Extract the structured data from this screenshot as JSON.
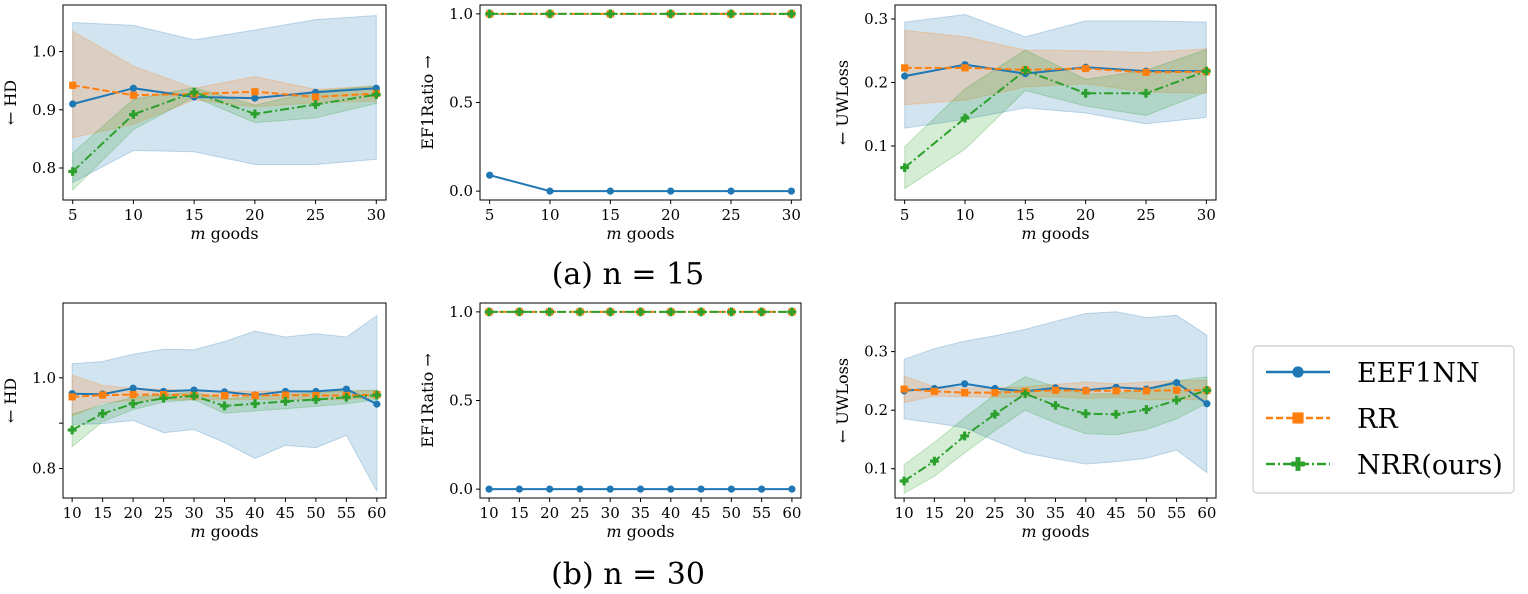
{
  "captions": [
    "(a) n = 15",
    "(b) n = 30"
  ],
  "legend": {
    "entries": [
      {
        "name": "EEF1NN",
        "color": "#1f77b4",
        "marker": "circle",
        "dash": "solid"
      },
      {
        "name": "RR",
        "color": "#ff7f0e",
        "marker": "square",
        "dash": "dashed"
      },
      {
        "name": "NRR(ours)",
        "color": "#2ca02c",
        "marker": "plus",
        "dash": "dashdot"
      }
    ]
  },
  "chart_data": [
    {
      "id": "a-hd",
      "type": "line",
      "row": 0,
      "col": 0,
      "xlabel": "m goods",
      "ylabel": "← HD",
      "x": [
        5,
        10,
        15,
        20,
        25,
        30
      ],
      "xlim": [
        4.2,
        30.8
      ],
      "ylim": [
        0.745,
        1.08
      ],
      "yticks": [
        0.8,
        0.9,
        1.0
      ],
      "ytick_labels": [
        "0.8",
        "0.9",
        "1.0"
      ],
      "series": [
        {
          "name": "EEF1NN",
          "values": [
            0.91,
            0.937,
            0.922,
            0.92,
            0.93,
            0.937
          ],
          "lower": [
            0.775,
            0.83,
            0.828,
            0.806,
            0.806,
            0.815
          ],
          "upper": [
            1.05,
            1.045,
            1.02,
            1.037,
            1.055,
            1.062
          ]
        },
        {
          "name": "RR",
          "values": [
            0.942,
            0.925,
            0.927,
            0.931,
            0.922,
            0.928
          ],
          "lower": [
            0.852,
            0.875,
            0.917,
            0.905,
            0.912,
            0.915
          ],
          "upper": [
            1.035,
            0.975,
            0.937,
            0.957,
            0.935,
            0.941
          ]
        },
        {
          "name": "NRR(ours)",
          "values": [
            0.794,
            0.892,
            0.93,
            0.893,
            0.909,
            0.926
          ],
          "lower": [
            0.762,
            0.866,
            0.922,
            0.878,
            0.886,
            0.911
          ],
          "upper": [
            0.826,
            0.918,
            0.938,
            0.908,
            0.932,
            0.941
          ]
        }
      ]
    },
    {
      "id": "a-ef1",
      "type": "line",
      "row": 0,
      "col": 1,
      "xlabel": "m goods",
      "ylabel": "EF1Ratio →",
      "x": [
        5,
        10,
        15,
        20,
        25,
        30
      ],
      "xlim": [
        4.2,
        30.8
      ],
      "ylim": [
        -0.05,
        1.05
      ],
      "yticks": [
        0.0,
        0.5,
        1.0
      ],
      "ytick_labels": [
        "0.0",
        "0.5",
        "1.0"
      ],
      "series": [
        {
          "name": "EEF1NN",
          "values": [
            0.09,
            0.0,
            0.0,
            0.0,
            0.0,
            0.0
          ]
        },
        {
          "name": "RR",
          "values": [
            1.0,
            1.0,
            1.0,
            1.0,
            1.0,
            1.0
          ]
        },
        {
          "name": "NRR(ours)",
          "values": [
            1.0,
            1.0,
            1.0,
            1.0,
            1.0,
            1.0
          ]
        }
      ]
    },
    {
      "id": "a-uw",
      "type": "line",
      "row": 0,
      "col": 2,
      "xlabel": "m goods",
      "ylabel": "← UWLoss",
      "x": [
        5,
        10,
        15,
        20,
        25,
        30
      ],
      "xlim": [
        4.2,
        30.8
      ],
      "ylim": [
        0.015,
        0.322
      ],
      "yticks": [
        0.1,
        0.2,
        0.3
      ],
      "ytick_labels": [
        "0.1",
        "0.2",
        "0.3"
      ],
      "series": [
        {
          "name": "EEF1NN",
          "values": [
            0.21,
            0.228,
            0.214,
            0.224,
            0.218,
            0.218
          ],
          "lower": [
            0.128,
            0.142,
            0.16,
            0.152,
            0.135,
            0.145
          ],
          "upper": [
            0.295,
            0.307,
            0.272,
            0.297,
            0.297,
            0.295
          ]
        },
        {
          "name": "RR",
          "values": [
            0.223,
            0.223,
            0.22,
            0.222,
            0.216,
            0.217
          ],
          "lower": [
            0.165,
            0.172,
            0.193,
            0.198,
            0.185,
            0.183
          ],
          "upper": [
            0.282,
            0.272,
            0.251,
            0.25,
            0.247,
            0.253
          ]
        },
        {
          "name": "NRR(ours)",
          "values": [
            0.066,
            0.144,
            0.219,
            0.183,
            0.183,
            0.218
          ],
          "lower": [
            0.033,
            0.095,
            0.187,
            0.163,
            0.148,
            0.185
          ],
          "upper": [
            0.099,
            0.19,
            0.251,
            0.205,
            0.219,
            0.252
          ]
        }
      ]
    },
    {
      "id": "b-hd",
      "type": "line",
      "row": 1,
      "col": 0,
      "xlabel": "m goods",
      "ylabel": "← HD",
      "x": [
        10,
        15,
        20,
        25,
        30,
        35,
        40,
        45,
        50,
        55,
        60
      ],
      "xlim": [
        8.5,
        61.5
      ],
      "ylim": [
        0.735,
        1.165
      ],
      "yticks": [
        0.8,
        0.9,
        1.0
      ],
      "ytick_labels": [
        "0.8",
        "",
        "1.0"
      ],
      "series": [
        {
          "name": "EEF1NN",
          "values": [
            0.965,
            0.964,
            0.977,
            0.97,
            0.973,
            0.969,
            0.962,
            0.97,
            0.97,
            0.975,
            0.942
          ],
          "lower": [
            0.897,
            0.899,
            0.906,
            0.879,
            0.886,
            0.857,
            0.822,
            0.851,
            0.846,
            0.873,
            0.75
          ],
          "upper": [
            1.031,
            1.036,
            1.052,
            1.063,
            1.062,
            1.08,
            1.103,
            1.09,
            1.097,
            1.09,
            1.137
          ]
        },
        {
          "name": "RR",
          "values": [
            0.958,
            0.962,
            0.963,
            0.963,
            0.961,
            0.961,
            0.961,
            0.962,
            0.961,
            0.961,
            0.963
          ],
          "lower": [
            0.915,
            0.945,
            0.95,
            0.952,
            0.951,
            0.952,
            0.952,
            0.953,
            0.952,
            0.952,
            0.956
          ],
          "upper": [
            1.006,
            0.983,
            0.977,
            0.975,
            0.972,
            0.971,
            0.97,
            0.971,
            0.97,
            0.971,
            0.972
          ]
        },
        {
          "name": "NRR(ours)",
          "values": [
            0.885,
            0.921,
            0.943,
            0.955,
            0.96,
            0.938,
            0.943,
            0.948,
            0.952,
            0.957,
            0.962
          ],
          "lower": [
            0.848,
            0.903,
            0.93,
            0.947,
            0.952,
            0.922,
            0.927,
            0.932,
            0.937,
            0.943,
            0.952
          ],
          "upper": [
            0.92,
            0.94,
            0.957,
            0.963,
            0.968,
            0.954,
            0.958,
            0.963,
            0.967,
            0.971,
            0.973
          ]
        }
      ]
    },
    {
      "id": "b-ef1",
      "type": "line",
      "row": 1,
      "col": 1,
      "xlabel": "m goods",
      "ylabel": "EF1Ratio →",
      "x": [
        10,
        15,
        20,
        25,
        30,
        35,
        40,
        45,
        50,
        55,
        60
      ],
      "xlim": [
        8.5,
        61.5
      ],
      "ylim": [
        -0.05,
        1.05
      ],
      "yticks": [
        0.0,
        0.5,
        1.0
      ],
      "ytick_labels": [
        "0.0",
        "0.5",
        "1.0"
      ],
      "series": [
        {
          "name": "EEF1NN",
          "values": [
            0,
            0,
            0,
            0,
            0,
            0,
            0,
            0,
            0,
            0,
            0
          ]
        },
        {
          "name": "RR",
          "values": [
            1,
            1,
            1,
            1,
            1,
            1,
            1,
            1,
            1,
            1,
            1
          ]
        },
        {
          "name": "NRR(ours)",
          "values": [
            1,
            1,
            1,
            1,
            1,
            1,
            1,
            1,
            1,
            1,
            1
          ]
        }
      ]
    },
    {
      "id": "b-uw",
      "type": "line",
      "row": 1,
      "col": 2,
      "xlabel": "m goods",
      "ylabel": "← UWLoss",
      "x": [
        10,
        15,
        20,
        25,
        30,
        35,
        40,
        45,
        50,
        55,
        60
      ],
      "xlim": [
        8.5,
        61.5
      ],
      "ylim": [
        0.05,
        0.383
      ],
      "yticks": [
        0.1,
        0.2,
        0.3
      ],
      "ytick_labels": [
        "0.1",
        "0.2",
        "0.3"
      ],
      "series": [
        {
          "name": "EEF1NN",
          "values": [
            0.233,
            0.237,
            0.245,
            0.237,
            0.232,
            0.238,
            0.234,
            0.239,
            0.236,
            0.247,
            0.211
          ],
          "lower": [
            0.185,
            0.178,
            0.17,
            0.148,
            0.127,
            0.117,
            0.108,
            0.112,
            0.118,
            0.132,
            0.093
          ],
          "upper": [
            0.287,
            0.305,
            0.318,
            0.327,
            0.338,
            0.352,
            0.365,
            0.368,
            0.358,
            0.362,
            0.328
          ]
        },
        {
          "name": "RR",
          "values": [
            0.236,
            0.232,
            0.23,
            0.23,
            0.232,
            0.234,
            0.233,
            0.233,
            0.233,
            0.234,
            0.234
          ],
          "lower": [
            0.213,
            0.224,
            0.223,
            0.222,
            0.223,
            0.223,
            0.22,
            0.222,
            0.218,
            0.218,
            0.218
          ],
          "upper": [
            0.258,
            0.24,
            0.238,
            0.238,
            0.24,
            0.244,
            0.248,
            0.245,
            0.248,
            0.25,
            0.251
          ]
        },
        {
          "name": "NRR(ours)",
          "values": [
            0.079,
            0.113,
            0.156,
            0.193,
            0.228,
            0.208,
            0.194,
            0.193,
            0.201,
            0.217,
            0.234
          ],
          "lower": [
            0.058,
            0.087,
            0.127,
            0.165,
            0.2,
            0.178,
            0.16,
            0.158,
            0.167,
            0.185,
            0.212
          ],
          "upper": [
            0.107,
            0.145,
            0.187,
            0.227,
            0.257,
            0.24,
            0.228,
            0.228,
            0.236,
            0.25,
            0.257
          ]
        }
      ]
    }
  ]
}
